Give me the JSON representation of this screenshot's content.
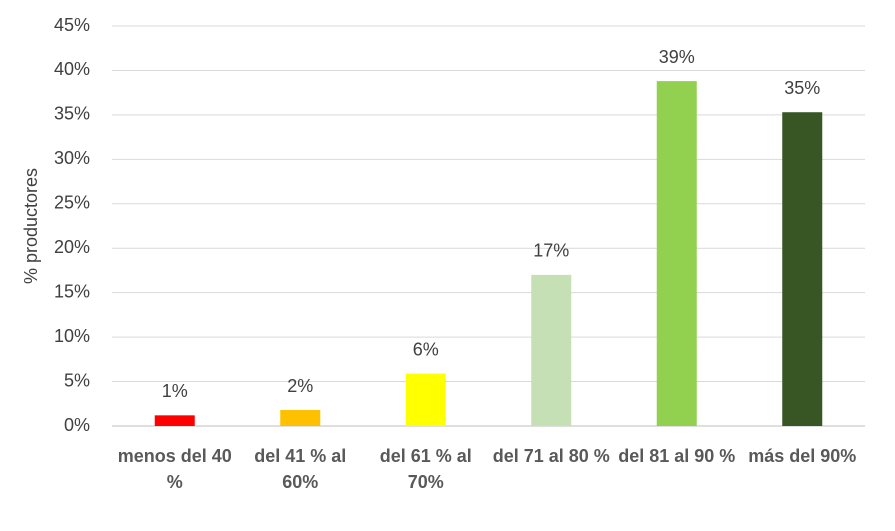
{
  "chart_data": {
    "type": "bar",
    "y_label": "% productores",
    "categories": [
      "menos del 40 %",
      "del 41 % al 60%",
      "del 61 % al 70%",
      "del 71 al 80 %",
      "del 81 al 90 %",
      "más del 90%"
    ],
    "values": [
      1.2,
      1.8,
      5.9,
      17,
      38.8,
      35.3
    ],
    "value_labels": [
      "1%",
      "2%",
      "6%",
      "17%",
      "39%",
      "35%"
    ],
    "colors": [
      "#ff0000",
      "#ffc000",
      "#ffff00",
      "#c5e0b4",
      "#92d050",
      "#375623"
    ],
    "ylim": [
      0,
      45
    ],
    "yticks": [
      {
        "value": 0,
        "label": "0%"
      },
      {
        "value": 5,
        "label": "5%"
      },
      {
        "value": 10,
        "label": "10%"
      },
      {
        "value": 15,
        "label": "15%"
      },
      {
        "value": 20,
        "label": "20%"
      },
      {
        "value": 25,
        "label": "25%"
      },
      {
        "value": 30,
        "label": "30%"
      },
      {
        "value": 35,
        "label": "35%"
      },
      {
        "value": 40,
        "label": "40%"
      },
      {
        "value": 45,
        "label": "45%"
      }
    ],
    "grid": true
  }
}
